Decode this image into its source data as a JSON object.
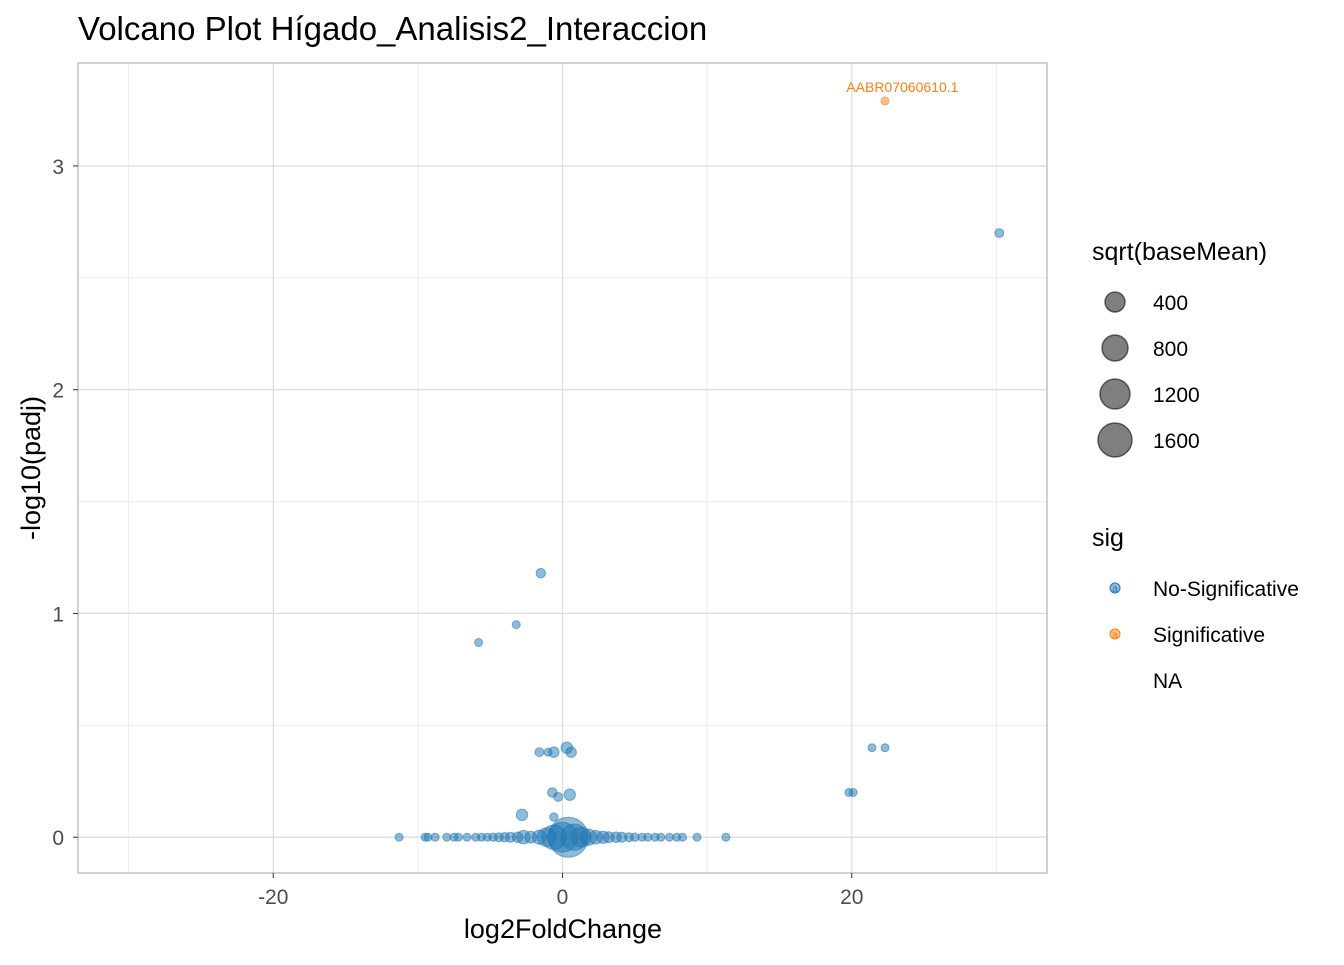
{
  "chart_data": {
    "type": "scatter",
    "title": "Volcano Plot Hígado_Analisis2_Interaccion",
    "xlabel": "log2FoldChange",
    "ylabel": "-log10(padj)",
    "xlim": [
      -33.5,
      33.5
    ],
    "ylim": [
      -0.16,
      3.46
    ],
    "x_ticks": [
      -20,
      0,
      20
    ],
    "y_ticks": [
      0,
      1,
      2,
      3
    ],
    "grid": true,
    "legend_position": "right",
    "size_legend": {
      "title": "sqrt(baseMean)",
      "entries": [
        {
          "label": "400",
          "value": 400
        },
        {
          "label": "800",
          "value": 800
        },
        {
          "label": "1200",
          "value": 1200
        },
        {
          "label": "1600",
          "value": 1600
        }
      ]
    },
    "color_legend": {
      "title": "sig",
      "entries": [
        {
          "label": "No-Significative",
          "color": "#1f77b4"
        },
        {
          "label": "Significative",
          "color": "#ff7f0e"
        },
        {
          "label": "NA",
          "color": null
        }
      ]
    },
    "annotations": [
      {
        "text": "AABR07060610.1",
        "x": 23.5,
        "y": 3.33,
        "color": "#ff7f0e"
      }
    ],
    "series": [
      {
        "name": "Significative",
        "color": "#ff7f0e",
        "points": [
          {
            "x": 22.3,
            "y": 3.29,
            "size": 60
          }
        ]
      },
      {
        "name": "No-Significative",
        "color": "#1f77b4",
        "points": [
          {
            "x": 30.2,
            "y": 2.7,
            "size": 80
          },
          {
            "x": -1.5,
            "y": 1.18,
            "size": 90
          },
          {
            "x": -3.2,
            "y": 0.95,
            "size": 60
          },
          {
            "x": -5.8,
            "y": 0.87,
            "size": 60
          },
          {
            "x": 21.4,
            "y": 0.4,
            "size": 60
          },
          {
            "x": 22.3,
            "y": 0.4,
            "size": 60
          },
          {
            "x": 19.8,
            "y": 0.2,
            "size": 60
          },
          {
            "x": 20.1,
            "y": 0.2,
            "size": 60
          },
          {
            "x": -1.6,
            "y": 0.38,
            "size": 80
          },
          {
            "x": -1.0,
            "y": 0.38,
            "size": 60
          },
          {
            "x": -0.6,
            "y": 0.38,
            "size": 110
          },
          {
            "x": 0.3,
            "y": 0.4,
            "size": 130
          },
          {
            "x": 0.6,
            "y": 0.38,
            "size": 110
          },
          {
            "x": -0.7,
            "y": 0.2,
            "size": 90
          },
          {
            "x": -0.3,
            "y": 0.18,
            "size": 80
          },
          {
            "x": 0.5,
            "y": 0.19,
            "size": 130
          },
          {
            "x": -2.8,
            "y": 0.1,
            "size": 130
          },
          {
            "x": -0.6,
            "y": 0.09,
            "size": 70
          },
          {
            "x": -11.3,
            "y": 0.0,
            "size": 60
          },
          {
            "x": -9.5,
            "y": 0.0,
            "size": 60
          },
          {
            "x": -9.3,
            "y": 0.0,
            "size": 60
          },
          {
            "x": -8.8,
            "y": 0.0,
            "size": 60
          },
          {
            "x": -8.0,
            "y": 0.0,
            "size": 60
          },
          {
            "x": -7.5,
            "y": 0.0,
            "size": 60
          },
          {
            "x": -7.2,
            "y": 0.0,
            "size": 60
          },
          {
            "x": -6.6,
            "y": 0.0,
            "size": 60
          },
          {
            "x": -6.0,
            "y": 0.0,
            "size": 60
          },
          {
            "x": -5.6,
            "y": 0.0,
            "size": 60
          },
          {
            "x": -5.2,
            "y": 0.0,
            "size": 60
          },
          {
            "x": -4.8,
            "y": 0.0,
            "size": 70
          },
          {
            "x": -4.4,
            "y": 0.0,
            "size": 80
          },
          {
            "x": -4.0,
            "y": 0.0,
            "size": 90
          },
          {
            "x": -3.6,
            "y": 0.0,
            "size": 100
          },
          {
            "x": -3.1,
            "y": 0.0,
            "size": 110
          },
          {
            "x": -2.7,
            "y": 0.0,
            "size": 180
          },
          {
            "x": -2.2,
            "y": 0.0,
            "size": 140
          },
          {
            "x": -1.6,
            "y": 0.0,
            "size": 200
          },
          {
            "x": -1.1,
            "y": 0.0,
            "size": 350
          },
          {
            "x": -0.6,
            "y": 0.0,
            "size": 600
          },
          {
            "x": 0.0,
            "y": 0.0,
            "size": 900
          },
          {
            "x": 0.4,
            "y": 0.0,
            "size": 1600
          },
          {
            "x": 0.8,
            "y": 0.0,
            "size": 700
          },
          {
            "x": 1.3,
            "y": 0.0,
            "size": 400
          },
          {
            "x": 1.8,
            "y": 0.0,
            "size": 260
          },
          {
            "x": 2.3,
            "y": 0.0,
            "size": 180
          },
          {
            "x": 2.8,
            "y": 0.0,
            "size": 150
          },
          {
            "x": 3.2,
            "y": 0.0,
            "size": 120
          },
          {
            "x": 3.7,
            "y": 0.0,
            "size": 110
          },
          {
            "x": 4.1,
            "y": 0.0,
            "size": 100
          },
          {
            "x": 4.6,
            "y": 0.0,
            "size": 80
          },
          {
            "x": 5.0,
            "y": 0.0,
            "size": 70
          },
          {
            "x": 5.5,
            "y": 0.0,
            "size": 60
          },
          {
            "x": 5.9,
            "y": 0.0,
            "size": 60
          },
          {
            "x": 6.4,
            "y": 0.0,
            "size": 60
          },
          {
            "x": 6.8,
            "y": 0.0,
            "size": 60
          },
          {
            "x": 7.4,
            "y": 0.0,
            "size": 60
          },
          {
            "x": 7.9,
            "y": 0.0,
            "size": 60
          },
          {
            "x": 8.3,
            "y": 0.0,
            "size": 60
          },
          {
            "x": 9.3,
            "y": 0.0,
            "size": 60
          },
          {
            "x": 11.3,
            "y": 0.0,
            "size": 60
          }
        ]
      }
    ]
  }
}
